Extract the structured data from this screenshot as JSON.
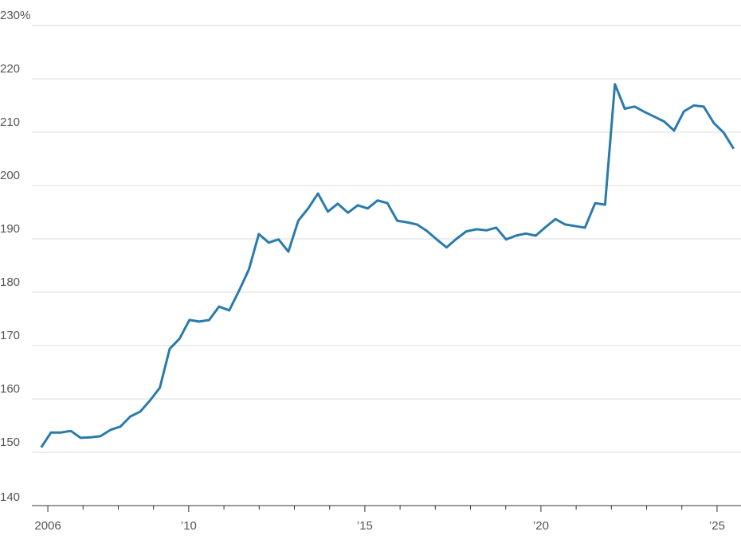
{
  "chart_data": {
    "type": "line",
    "series": [
      {
        "color": "#2a7bab",
        "x": [
          2005.81,
          2006.09,
          2006.37,
          2006.65,
          2006.93,
          2007.21,
          2007.49,
          2007.78,
          2008.06,
          2008.34,
          2008.62,
          2008.9,
          2009.18,
          2009.46,
          2009.74,
          2010.02,
          2010.3,
          2010.58,
          2010.86,
          2011.15,
          2011.43,
          2011.71,
          2011.99,
          2012.27,
          2012.55,
          2012.83,
          2013.11,
          2013.39,
          2013.67,
          2013.95,
          2014.23,
          2014.52,
          2014.8,
          2015.08,
          2015.36,
          2015.64,
          2015.92,
          2016.2,
          2016.48,
          2016.76,
          2017.04,
          2017.32,
          2017.6,
          2017.88,
          2018.17,
          2018.45,
          2018.73,
          2019.01,
          2019.29,
          2019.57,
          2019.85,
          2020.13,
          2020.41,
          2020.69,
          2020.97,
          2021.25,
          2021.54,
          2021.82,
          2022.1,
          2022.38,
          2022.66,
          2022.94,
          2023.22,
          2023.5,
          2023.78,
          2024.06,
          2024.34,
          2024.62,
          2024.91,
          2025.19,
          2025.47
        ],
        "values": [
          150.9,
          153.7,
          153.7,
          154.0,
          152.7,
          152.8,
          153.0,
          154.2,
          154.8,
          156.7,
          157.6,
          159.7,
          162.1,
          169.4,
          171.3,
          174.8,
          174.5,
          174.8,
          177.3,
          176.6,
          180.3,
          184.3,
          190.9,
          189.3,
          189.9,
          187.6,
          193.4,
          195.7,
          198.5,
          195.1,
          196.6,
          194.9,
          196.3,
          195.7,
          197.2,
          196.7,
          193.4,
          193.1,
          192.7,
          191.5,
          189.9,
          188.4,
          190.0,
          191.4,
          191.8,
          191.6,
          192.1,
          189.9,
          190.6,
          191.0,
          190.6,
          192.2,
          193.7,
          192.7,
          192.4,
          192.1,
          196.7,
          196.4,
          219.0,
          214.4,
          214.8,
          213.8,
          212.9,
          212.0,
          210.3,
          213.9,
          215.0,
          214.8,
          211.7,
          209.9,
          206.9
        ]
      }
    ],
    "xlim": [
      2005.32,
      2025.68
    ],
    "xticks": [
      2006,
      {
        "value": 2010,
        "label": "’10"
      },
      {
        "value": 2015,
        "label": "’15"
      },
      {
        "value": 2020,
        "label": "’20"
      },
      {
        "value": 2025,
        "label": "’25"
      }
    ],
    "xminor_ticks": [
      2007,
      2008,
      2009,
      2011,
      2012,
      2013,
      2014,
      2016,
      2017,
      2018,
      2019,
      2021,
      2022,
      2023,
      2024
    ],
    "ylim": [
      140,
      230
    ],
    "yticks": [
      140,
      150,
      160,
      170,
      180,
      190,
      200,
      210,
      220,
      {
        "value": 230,
        "label": "230%"
      }
    ],
    "grid": true
  }
}
